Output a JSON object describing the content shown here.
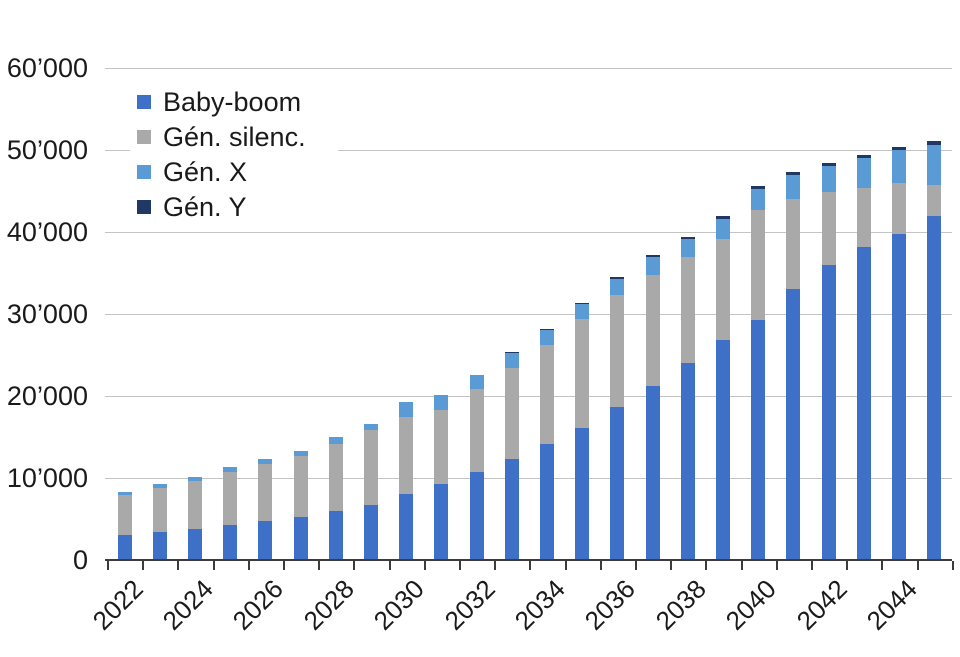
{
  "chart_data": {
    "type": "bar",
    "stacked": true,
    "title": "",
    "xlabel": "",
    "ylabel": "",
    "categories": [
      "2022",
      "2023",
      "2024",
      "2025",
      "2026",
      "2027",
      "2028",
      "2029",
      "2030",
      "2031",
      "2032",
      "2033",
      "2034",
      "2035",
      "2036",
      "2037",
      "2038",
      "2039",
      "2040",
      "2041",
      "2042",
      "2043",
      "2044",
      "2045"
    ],
    "x_tick_labels": [
      "2022",
      "2024",
      "2026",
      "2028",
      "2030",
      "2032",
      "2034",
      "2036",
      "2038",
      "2040",
      "2042",
      "2044"
    ],
    "label_every": 2,
    "series": [
      {
        "name": "Baby-boom",
        "color": "#3f70c8",
        "values": [
          3100,
          3400,
          3800,
          4300,
          4700,
          5300,
          6000,
          6700,
          8100,
          9300,
          10700,
          12300,
          14200,
          16100,
          18600,
          21200,
          24000,
          26800,
          29300,
          33000,
          36000,
          38200,
          39700,
          41900
        ]
      },
      {
        "name": "Gén. silenc.",
        "color": "#a9a9a9",
        "values": [
          4800,
          5400,
          5800,
          6400,
          7000,
          7400,
          8200,
          9100,
          9400,
          9000,
          10100,
          11100,
          12000,
          13300,
          13700,
          13600,
          12900,
          12400,
          13400,
          11000,
          8900,
          7200,
          6300,
          3800
        ]
      },
      {
        "name": "Gén. X",
        "color": "#5b9bd5",
        "values": [
          400,
          500,
          500,
          600,
          600,
          600,
          800,
          800,
          1800,
          1800,
          1800,
          1800,
          1800,
          1800,
          2000,
          2200,
          2300,
          2400,
          2600,
          3000,
          3100,
          3600,
          4000,
          4900
        ]
      },
      {
        "name": "Gén. Y",
        "color": "#1f3864",
        "values": [
          0,
          0,
          0,
          0,
          0,
          0,
          0,
          0,
          0,
          0,
          0,
          200,
          200,
          200,
          200,
          200,
          200,
          300,
          300,
          300,
          400,
          400,
          400,
          500
        ]
      }
    ],
    "totals": [
      8300,
      9300,
      10100,
      11300,
      12300,
      13300,
      15000,
      16600,
      19300,
      20100,
      22600,
      25400,
      28200,
      31400,
      34500,
      37200,
      39400,
      41900,
      45600,
      47300,
      48400,
      49400,
      50400,
      51100
    ],
    "ylim": [
      0,
      60000
    ],
    "yticks": [
      0,
      10000,
      20000,
      30000,
      40000,
      50000,
      60000
    ],
    "ytick_labels": [
      "0",
      "10’000",
      "20’000",
      "30’000",
      "40’000",
      "50’000",
      "60’000"
    ],
    "grid": true,
    "legend_position": "top-left"
  },
  "colors": {
    "background": "#ffffff",
    "gridline": "#c4c4c4",
    "axis": "#3c3c3c",
    "text": "#1a1a1a"
  }
}
